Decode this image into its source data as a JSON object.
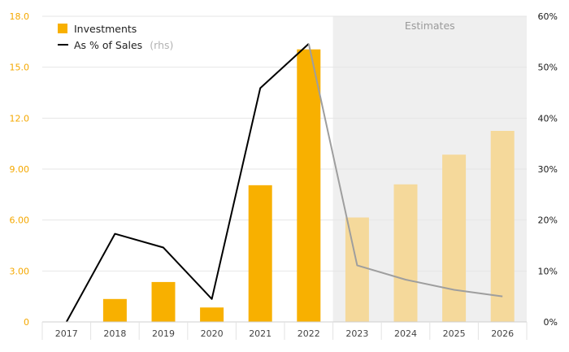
{
  "chart_data": {
    "type": "bar",
    "categories": [
      "2017",
      "2018",
      "2019",
      "2020",
      "2021",
      "2022",
      "2023",
      "2024",
      "2025",
      "2026"
    ],
    "estimate_from_index": 6,
    "shaded_region_label": "Estimates",
    "series": [
      {
        "name": "Investments",
        "kind": "bar",
        "axis": "left",
        "values": [
          0,
          1.35,
          2.35,
          0.85,
          8.05,
          16.05,
          6.15,
          8.1,
          9.85,
          11.25
        ]
      },
      {
        "name": "As % of Sales",
        "name_suffix": "(rhs)",
        "kind": "line",
        "axis": "right",
        "values": [
          0,
          17.3,
          14.6,
          4.5,
          45.9,
          54.6,
          11.1,
          8.3,
          6.3,
          5.0
        ]
      }
    ],
    "y_left": {
      "lim": [
        0,
        18
      ],
      "ticks": [
        0,
        3,
        6,
        9,
        12,
        15,
        18
      ],
      "tick_labels": [
        "0",
        "3.00",
        "6.00",
        "9.00",
        "12.0",
        "15.0",
        "18.0"
      ]
    },
    "y_right": {
      "lim": [
        0,
        60
      ],
      "ticks": [
        0,
        10,
        20,
        30,
        40,
        50,
        60
      ],
      "tick_labels": [
        "0%",
        "10%",
        "20%",
        "30%",
        "40%",
        "50%",
        "60%"
      ]
    },
    "grid": true,
    "legend_position": "top-left",
    "colors": {
      "bar": "#f8b000",
      "bar_estimate": "#f5d99b",
      "line": "#000000",
      "line_estimate": "#9e9e9e",
      "shade": "#efefef",
      "left_axis": "#f5a800"
    }
  }
}
